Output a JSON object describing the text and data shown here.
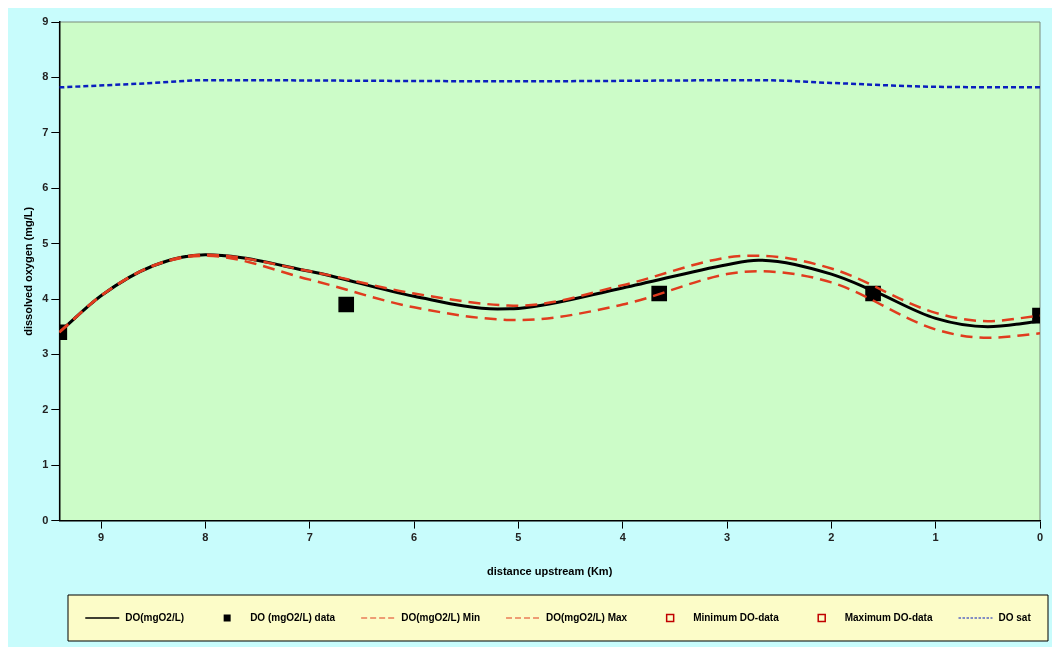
{
  "chart_data": {
    "type": "line",
    "xlabel": "distance upstream (Km)",
    "ylabel": "dissolved oxygen (mg/L)",
    "xlim": [
      9.4,
      0
    ],
    "xticks": [
      9,
      8,
      7,
      6,
      5,
      4,
      3,
      2,
      1,
      0
    ],
    "ylim": [
      0,
      9
    ],
    "yticks": [
      0,
      1,
      2,
      3,
      4,
      5,
      6,
      7,
      8,
      9
    ],
    "legend": "bottom",
    "series": [
      {
        "name": "DO(mgO2/L)",
        "color": "#000000",
        "line_style": "solid",
        "marker": "none",
        "x": [
          9.4,
          9,
          8.5,
          8,
          7,
          6,
          5.2,
          5,
          4,
          3,
          2.7,
          2,
          1.6,
          1,
          0.5,
          0
        ],
        "values": [
          3.4,
          4.06,
          4.6,
          4.8,
          4.5,
          4.05,
          3.82,
          3.83,
          4.2,
          4.62,
          4.7,
          4.45,
          4.15,
          3.65,
          3.5,
          3.6
        ]
      },
      {
        "name": "DO (mgO2/L) data",
        "type": "scatter",
        "color": "#000000",
        "marker": "square",
        "x": [
          9.4,
          6.65,
          3.65,
          1.6,
          0
        ],
        "values": [
          3.4,
          3.9,
          4.1,
          4.1,
          3.7
        ]
      },
      {
        "name": "DO(mgO2/L) Min",
        "color": "#e03c1e",
        "line_style": "dashed",
        "marker": "none",
        "x": [
          9.4,
          9,
          8.5,
          8,
          7,
          6,
          5,
          4,
          3,
          2.7,
          2,
          1,
          0.5,
          0
        ],
        "values": [
          3.4,
          4.06,
          4.6,
          4.78,
          4.35,
          3.85,
          3.62,
          3.9,
          4.45,
          4.5,
          4.3,
          3.45,
          3.3,
          3.38
        ]
      },
      {
        "name": "DO(mgO2/L) Max",
        "color": "#e03c1e",
        "line_style": "dashed",
        "marker": "none",
        "x": [
          9.4,
          9,
          8.5,
          8,
          7,
          6,
          5,
          4,
          3,
          2.7,
          2,
          1,
          0.5,
          0
        ],
        "values": [
          3.4,
          4.06,
          4.6,
          4.8,
          4.5,
          4.1,
          3.88,
          4.25,
          4.75,
          4.78,
          4.55,
          3.75,
          3.6,
          3.7
        ]
      },
      {
        "name": "Minimum DO-data",
        "type": "scatter",
        "color": "#c00000",
        "marker": "square"
      },
      {
        "name": "Maximum DO-data",
        "type": "scatter",
        "color": "#c00000",
        "marker": "square"
      },
      {
        "name": "DO sat",
        "color": "#0a1ebe",
        "line_style": "dotted",
        "marker": "none",
        "x": [
          9.4,
          8.5,
          8,
          5,
          2.7,
          2,
          1,
          0
        ],
        "values": [
          7.82,
          7.9,
          7.95,
          7.93,
          7.95,
          7.9,
          7.83,
          7.82
        ]
      }
    ]
  }
}
